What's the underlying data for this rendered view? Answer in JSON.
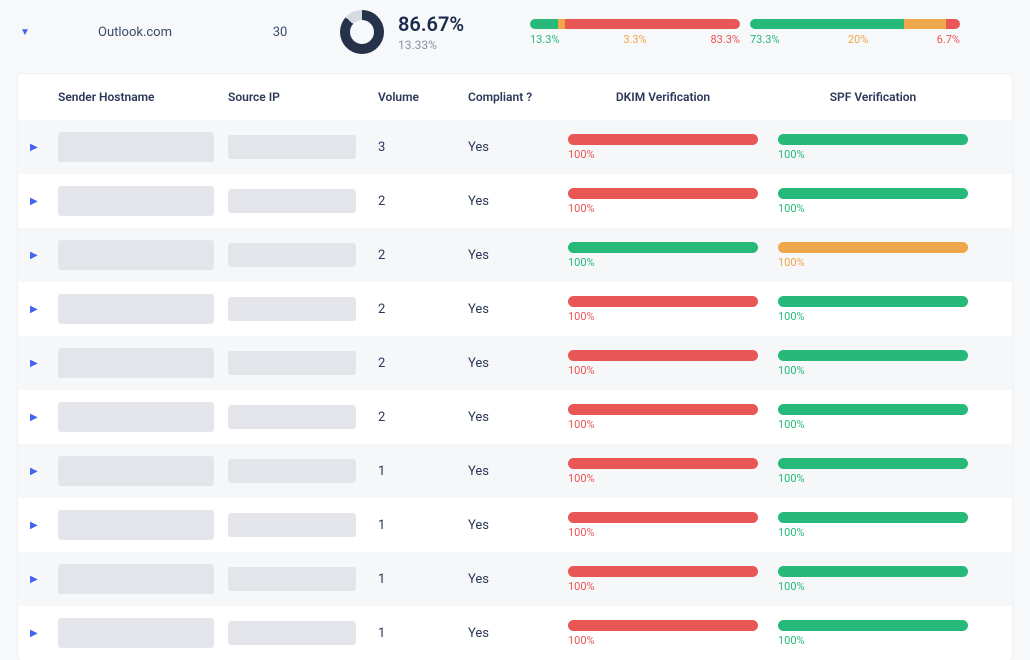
{
  "colors": {
    "green": "#27b97a",
    "orange": "#f0a64a",
    "red": "#e85656",
    "donut_fg": "#263249",
    "donut_bg": "#d7dae2"
  },
  "summary": {
    "provider": "Outlook.com",
    "count": "30",
    "donut": {
      "primary_pct": 86.67,
      "big": "86.67%",
      "small": "13.33%"
    },
    "bar1": {
      "segments": [
        {
          "pct": 13.3,
          "color": "#27b97a"
        },
        {
          "pct": 3.3,
          "color": "#f0a64a"
        },
        {
          "pct": 83.3,
          "color": "#e85656"
        }
      ],
      "labels": {
        "green": "13.3%",
        "orange": "3.3%",
        "red": "83.3%"
      }
    },
    "bar2": {
      "segments": [
        {
          "pct": 73.3,
          "color": "#27b97a"
        },
        {
          "pct": 20,
          "color": "#f0a64a"
        },
        {
          "pct": 6.7,
          "color": "#e85656"
        }
      ],
      "labels": {
        "green": "73.3%",
        "orange": "20%",
        "red": "6.7%"
      }
    }
  },
  "table": {
    "headers": {
      "host": "Sender Hostname",
      "ip": "Source IP",
      "vol": "Volume",
      "comp": "Compliant ?",
      "dkim": "DKIM Verification",
      "spf": "SPF Verification"
    },
    "rows": [
      {
        "vol": "3",
        "comp": "Yes",
        "dkim": {
          "pct": 100,
          "color": "#e85656",
          "label": "100%",
          "label_color": "#e85656"
        },
        "spf": {
          "pct": 100,
          "color": "#27b97a",
          "label": "100%",
          "label_color": "#27b97a"
        }
      },
      {
        "vol": "2",
        "comp": "Yes",
        "dkim": {
          "pct": 100,
          "color": "#e85656",
          "label": "100%",
          "label_color": "#e85656"
        },
        "spf": {
          "pct": 100,
          "color": "#27b97a",
          "label": "100%",
          "label_color": "#27b97a"
        }
      },
      {
        "vol": "2",
        "comp": "Yes",
        "dkim": {
          "pct": 100,
          "color": "#27b97a",
          "label": "100%",
          "label_color": "#27b97a"
        },
        "spf": {
          "pct": 100,
          "color": "#f0a64a",
          "label": "100%",
          "label_color": "#f0a64a"
        }
      },
      {
        "vol": "2",
        "comp": "Yes",
        "dkim": {
          "pct": 100,
          "color": "#e85656",
          "label": "100%",
          "label_color": "#e85656"
        },
        "spf": {
          "pct": 100,
          "color": "#27b97a",
          "label": "100%",
          "label_color": "#27b97a"
        }
      },
      {
        "vol": "2",
        "comp": "Yes",
        "dkim": {
          "pct": 100,
          "color": "#e85656",
          "label": "100%",
          "label_color": "#e85656"
        },
        "spf": {
          "pct": 100,
          "color": "#27b97a",
          "label": "100%",
          "label_color": "#27b97a"
        }
      },
      {
        "vol": "2",
        "comp": "Yes",
        "dkim": {
          "pct": 100,
          "color": "#e85656",
          "label": "100%",
          "label_color": "#e85656"
        },
        "spf": {
          "pct": 100,
          "color": "#27b97a",
          "label": "100%",
          "label_color": "#27b97a"
        }
      },
      {
        "vol": "1",
        "comp": "Yes",
        "dkim": {
          "pct": 100,
          "color": "#e85656",
          "label": "100%",
          "label_color": "#e85656"
        },
        "spf": {
          "pct": 100,
          "color": "#27b97a",
          "label": "100%",
          "label_color": "#27b97a"
        }
      },
      {
        "vol": "1",
        "comp": "Yes",
        "dkim": {
          "pct": 100,
          "color": "#e85656",
          "label": "100%",
          "label_color": "#e85656"
        },
        "spf": {
          "pct": 100,
          "color": "#27b97a",
          "label": "100%",
          "label_color": "#27b97a"
        }
      },
      {
        "vol": "1",
        "comp": "Yes",
        "dkim": {
          "pct": 100,
          "color": "#e85656",
          "label": "100%",
          "label_color": "#e85656"
        },
        "spf": {
          "pct": 100,
          "color": "#27b97a",
          "label": "100%",
          "label_color": "#27b97a"
        }
      },
      {
        "vol": "1",
        "comp": "Yes",
        "dkim": {
          "pct": 100,
          "color": "#e85656",
          "label": "100%",
          "label_color": "#e85656"
        },
        "spf": {
          "pct": 100,
          "color": "#27b97a",
          "label": "100%",
          "label_color": "#27b97a"
        }
      }
    ]
  }
}
